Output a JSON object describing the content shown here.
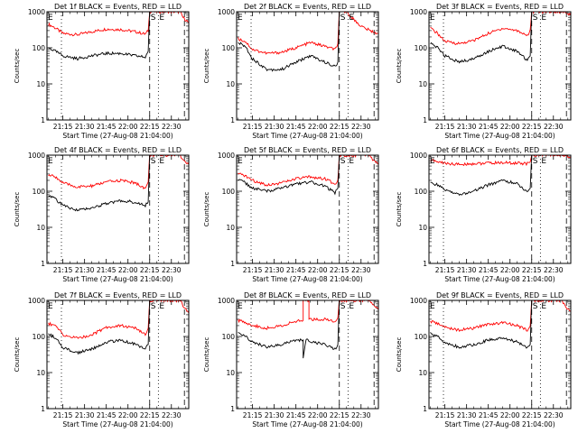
{
  "figure": {
    "colors": {
      "events": "#000000",
      "lld": "#ff0000",
      "axes": "#000000",
      "background": "#ffffff"
    }
  },
  "chart_data": [
    {
      "type": "line",
      "title": "Det 1f BLACK = Events, RED = LLD",
      "xlabel": "Start Time (27-Aug-08 21:04:00)",
      "ylabel": "Counts/sec",
      "y_scale": "log",
      "ylim": [
        1,
        1000
      ],
      "y_ticks": [
        "1",
        "10",
        "100",
        "1000"
      ],
      "x_tick_labels": [
        "21:15",
        "21:30",
        "21:45",
        "22:00",
        "22:15",
        "22:30"
      ],
      "xlim": [
        "21:04",
        "22:42"
      ],
      "grid": false,
      "markers": [
        {
          "time": "21:14",
          "style": "dotted"
        },
        {
          "time": "22:15",
          "style": "dashed",
          "label": "S"
        },
        {
          "time": "22:21",
          "style": "dotted",
          "label": "E"
        },
        {
          "time": "22:39",
          "style": "dashed"
        }
      ],
      "corner_label": "E",
      "series": [
        {
          "color": "red",
          "x": [
            "21:05",
            "21:10",
            "21:15",
            "21:25",
            "21:35",
            "21:45",
            "21:55",
            "22:05",
            "22:12",
            "22:14",
            "22:15",
            "22:36",
            "22:38",
            "22:42"
          ],
          "values": [
            450,
            350,
            250,
            230,
            280,
            330,
            320,
            280,
            240,
            300,
            1000,
            1000,
            700,
            500
          ]
        },
        {
          "color": "black",
          "x": [
            "21:05",
            "21:10",
            "21:15",
            "21:25",
            "21:35",
            "21:45",
            "21:55",
            "22:05",
            "22:12",
            "22:14",
            "22:15"
          ],
          "values": [
            100,
            80,
            60,
            50,
            60,
            70,
            70,
            60,
            55,
            80,
            1000
          ]
        }
      ]
    },
    {
      "type": "line",
      "title": "Det 2f BLACK = Events, RED = LLD",
      "xlabel": "Start Time (27-Aug-08 21:04:00)",
      "ylabel": "Counts/sec",
      "y_scale": "log",
      "ylim": [
        1,
        1000
      ],
      "y_ticks": [
        "1",
        "10",
        "100",
        "1000"
      ],
      "x_tick_labels": [
        "21:15",
        "21:30",
        "21:45",
        "22:00",
        "22:15",
        "22:30"
      ],
      "xlim": [
        "21:04",
        "22:42"
      ],
      "grid": false,
      "markers": [
        {
          "time": "21:14",
          "style": "dotted"
        },
        {
          "time": "22:15",
          "style": "dashed",
          "label": "S"
        },
        {
          "time": "22:21",
          "style": "dotted",
          "label": "E"
        },
        {
          "time": "22:39",
          "style": "dashed"
        }
      ],
      "corner_label": "E",
      "series": [
        {
          "color": "red",
          "x": [
            "21:05",
            "21:10",
            "21:15",
            "21:25",
            "21:35",
            "21:45",
            "21:55",
            "22:05",
            "22:12",
            "22:14",
            "22:15",
            "22:20",
            "22:25",
            "22:30",
            "22:36",
            "22:42"
          ],
          "values": [
            180,
            150,
            90,
            70,
            75,
            100,
            140,
            110,
            90,
            130,
            1000,
            1000,
            600,
            400,
            300,
            250
          ]
        },
        {
          "color": "black",
          "x": [
            "21:05",
            "21:10",
            "21:15",
            "21:25",
            "21:35",
            "21:45",
            "21:55",
            "22:05",
            "22:12",
            "22:14",
            "22:15"
          ],
          "values": [
            140,
            110,
            50,
            25,
            25,
            40,
            60,
            40,
            30,
            40,
            1000
          ]
        }
      ]
    },
    {
      "type": "line",
      "title": "Det 3f BLACK = Events, RED = LLD",
      "xlabel": "Start Time (27-Aug-08 21:04:00)",
      "ylabel": "Counts/sec",
      "y_scale": "log",
      "ylim": [
        1,
        1000
      ],
      "y_ticks": [
        "1",
        "10",
        "100",
        "1000"
      ],
      "x_tick_labels": [
        "21:15",
        "21:30",
        "21:45",
        "22:00",
        "22:15",
        "22:30"
      ],
      "xlim": [
        "21:04",
        "22:42"
      ],
      "grid": false,
      "markers": [
        {
          "time": "21:14",
          "style": "dotted"
        },
        {
          "time": "22:15",
          "style": "dashed",
          "label": "S"
        },
        {
          "time": "22:21",
          "style": "dotted",
          "label": "E"
        },
        {
          "time": "22:39",
          "style": "dashed"
        }
      ],
      "corner_label": "E",
      "series": [
        {
          "color": "red",
          "x": [
            "21:05",
            "21:10",
            "21:15",
            "21:25",
            "21:35",
            "21:45",
            "21:55",
            "22:05",
            "22:12",
            "22:14",
            "22:15",
            "22:38",
            "22:42"
          ],
          "values": [
            350,
            250,
            150,
            130,
            160,
            250,
            350,
            300,
            220,
            300,
            1000,
            1000,
            800
          ]
        },
        {
          "color": "black",
          "x": [
            "21:05",
            "21:10",
            "21:15",
            "21:25",
            "21:35",
            "21:45",
            "21:55",
            "22:05",
            "22:12",
            "22:14",
            "22:15"
          ],
          "values": [
            130,
            100,
            60,
            40,
            50,
            80,
            110,
            80,
            45,
            60,
            1000
          ]
        }
      ]
    },
    {
      "type": "line",
      "title": "Det 4f BLACK = Events, RED = LLD",
      "xlabel": "Start Time (27-Aug-08 21:04:00)",
      "ylabel": "Counts/sec",
      "y_scale": "log",
      "ylim": [
        1,
        1000
      ],
      "y_ticks": [
        "1",
        "10",
        "100",
        "1000"
      ],
      "x_tick_labels": [
        "21:15",
        "21:30",
        "21:45",
        "22:00",
        "22:15",
        "22:30"
      ],
      "xlim": [
        "21:04",
        "22:42"
      ],
      "grid": false,
      "markers": [
        {
          "time": "21:14",
          "style": "dotted"
        },
        {
          "time": "22:15",
          "style": "dashed",
          "label": "S"
        },
        {
          "time": "22:21",
          "style": "dotted",
          "label": "E"
        },
        {
          "time": "22:39",
          "style": "dashed"
        }
      ],
      "corner_label": "E",
      "series": [
        {
          "color": "red",
          "x": [
            "21:05",
            "21:10",
            "21:15",
            "21:25",
            "21:35",
            "21:45",
            "21:55",
            "22:05",
            "22:12",
            "22:14",
            "22:15",
            "22:36",
            "22:38",
            "22:42"
          ],
          "values": [
            280,
            250,
            170,
            130,
            140,
            180,
            200,
            170,
            120,
            180,
            1000,
            1000,
            750,
            550
          ]
        },
        {
          "color": "black",
          "x": [
            "21:05",
            "21:10",
            "21:15",
            "21:25",
            "21:35",
            "21:45",
            "21:55",
            "22:05",
            "22:12",
            "22:14",
            "22:15"
          ],
          "values": [
            80,
            60,
            40,
            30,
            35,
            45,
            55,
            50,
            40,
            50,
            1000
          ]
        }
      ]
    },
    {
      "type": "line",
      "title": "Det 5f BLACK = Events, RED = LLD",
      "xlabel": "Start Time (27-Aug-08 21:04:00)",
      "ylabel": "Counts/sec",
      "y_scale": "log",
      "ylim": [
        1,
        1000
      ],
      "y_ticks": [
        "1",
        "10",
        "100",
        "1000"
      ],
      "x_tick_labels": [
        "21:15",
        "21:30",
        "21:45",
        "22:00",
        "22:15",
        "22:30"
      ],
      "xlim": [
        "21:04",
        "22:42"
      ],
      "grid": false,
      "markers": [
        {
          "time": "21:14",
          "style": "dotted"
        },
        {
          "time": "22:15",
          "style": "dashed",
          "label": "S"
        },
        {
          "time": "22:21",
          "style": "dotted",
          "label": "E"
        },
        {
          "time": "22:39",
          "style": "dashed"
        }
      ],
      "corner_label": "E",
      "series": [
        {
          "color": "red",
          "x": [
            "21:05",
            "21:10",
            "21:15",
            "21:25",
            "21:35",
            "21:45",
            "21:55",
            "22:05",
            "22:12",
            "22:14",
            "22:15",
            "22:36",
            "22:38",
            "22:42"
          ],
          "values": [
            300,
            270,
            200,
            150,
            170,
            220,
            250,
            220,
            160,
            200,
            1000,
            1000,
            750,
            550
          ]
        },
        {
          "color": "black",
          "x": [
            "21:05",
            "21:10",
            "21:15",
            "21:25",
            "21:35",
            "21:45",
            "21:55",
            "22:05",
            "22:12",
            "22:14",
            "22:15"
          ],
          "values": [
            220,
            170,
            120,
            100,
            120,
            160,
            180,
            140,
            90,
            120,
            1000
          ]
        }
      ]
    },
    {
      "type": "line",
      "title": "Det 6f BLACK = Events, RED = LLD",
      "xlabel": "Start Time (27-Aug-08 21:04:00)",
      "ylabel": "Counts/sec",
      "y_scale": "log",
      "ylim": [
        1,
        1000
      ],
      "y_ticks": [
        "1",
        "10",
        "100",
        "1000"
      ],
      "x_tick_labels": [
        "21:15",
        "21:30",
        "21:45",
        "22:00",
        "22:15",
        "22:30"
      ],
      "xlim": [
        "21:04",
        "22:42"
      ],
      "grid": false,
      "markers": [
        {
          "time": "21:14",
          "style": "dotted"
        },
        {
          "time": "22:15",
          "style": "dashed",
          "label": "S"
        },
        {
          "time": "22:21",
          "style": "dotted",
          "label": "E"
        },
        {
          "time": "22:39",
          "style": "dashed"
        }
      ],
      "corner_label": "E",
      "series": [
        {
          "color": "red",
          "x": [
            "21:05",
            "21:10",
            "21:15",
            "21:25",
            "21:35",
            "21:45",
            "21:55",
            "22:05",
            "22:12",
            "22:14",
            "22:15",
            "22:38",
            "22:42"
          ],
          "values": [
            750,
            650,
            600,
            550,
            580,
            600,
            620,
            600,
            580,
            650,
            1000,
            1000,
            900
          ]
        },
        {
          "color": "black",
          "x": [
            "21:05",
            "21:10",
            "21:15",
            "21:25",
            "21:35",
            "21:45",
            "21:55",
            "22:05",
            "22:12",
            "22:14",
            "22:15"
          ],
          "values": [
            170,
            150,
            110,
            80,
            100,
            150,
            200,
            160,
            90,
            120,
            1000
          ]
        }
      ]
    },
    {
      "type": "line",
      "title": "Det 7f BLACK = Events, RED = LLD",
      "xlabel": "Start Time (27-Aug-08 21:04:00)",
      "ylabel": "Counts/sec",
      "y_scale": "log",
      "ylim": [
        1,
        1000
      ],
      "y_ticks": [
        "1",
        "10",
        "100",
        "1000"
      ],
      "x_tick_labels": [
        "21:15",
        "21:30",
        "21:45",
        "22:00",
        "22:15",
        "22:30"
      ],
      "xlim": [
        "21:04",
        "22:42"
      ],
      "grid": false,
      "markers": [
        {
          "time": "21:14",
          "style": "dotted"
        },
        {
          "time": "22:15",
          "style": "dashed",
          "label": "S"
        },
        {
          "time": "22:21",
          "style": "dotted",
          "label": "E"
        },
        {
          "time": "22:39",
          "style": "dashed"
        }
      ],
      "corner_label": "E",
      "series": [
        {
          "color": "red",
          "x": [
            "21:05",
            "21:10",
            "21:15",
            "21:25",
            "21:35",
            "21:45",
            "21:55",
            "22:05",
            "22:12",
            "22:14",
            "22:15",
            "22:36",
            "22:38",
            "22:42"
          ],
          "values": [
            230,
            200,
            110,
            90,
            110,
            180,
            200,
            170,
            110,
            170,
            1000,
            1000,
            700,
            450
          ]
        },
        {
          "color": "black",
          "x": [
            "21:05",
            "21:10",
            "21:15",
            "21:25",
            "21:35",
            "21:45",
            "21:55",
            "22:05",
            "22:12",
            "22:14",
            "22:15"
          ],
          "values": [
            120,
            90,
            50,
            35,
            45,
            70,
            80,
            60,
            45,
            60,
            1000
          ]
        }
      ]
    },
    {
      "type": "line",
      "title": "Det 8f BLACK = Events, RED = LLD",
      "xlabel": "Start Time (27-Aug-08 21:04:00)",
      "ylabel": "Counts/sec",
      "y_scale": "log",
      "ylim": [
        1,
        1000
      ],
      "y_ticks": [
        "1",
        "10",
        "100",
        "1000"
      ],
      "x_tick_labels": [
        "21:15",
        "21:30",
        "21:45",
        "22:00",
        "22:15",
        "22:30"
      ],
      "xlim": [
        "21:04",
        "22:42"
      ],
      "grid": false,
      "markers": [
        {
          "time": "21:14",
          "style": "dotted"
        },
        {
          "time": "22:15",
          "style": "dashed",
          "label": "S"
        },
        {
          "time": "22:21",
          "style": "dotted",
          "label": "E"
        },
        {
          "time": "22:39",
          "style": "dashed"
        }
      ],
      "corner_label": "E",
      "series": [
        {
          "color": "red",
          "x": [
            "21:05",
            "21:10",
            "21:15",
            "21:25",
            "21:35",
            "21:45",
            "21:50",
            "21:50",
            "21:54",
            "21:54",
            "22:05",
            "22:12",
            "22:14",
            "22:15",
            "22:36",
            "22:38",
            "22:42"
          ],
          "values": [
            280,
            250,
            200,
            170,
            200,
            260,
            280,
            1000,
            1000,
            300,
            300,
            250,
            330,
            1000,
            1000,
            750,
            550
          ]
        },
        {
          "color": "black",
          "x": [
            "21:05",
            "21:10",
            "21:15",
            "21:25",
            "21:35",
            "21:45",
            "21:50",
            "21:50",
            "21:52",
            "21:56",
            "22:05",
            "22:12",
            "22:14",
            "22:15"
          ],
          "values": [
            120,
            100,
            70,
            50,
            60,
            80,
            80,
            25,
            80,
            70,
            60,
            45,
            60,
            1000
          ]
        }
      ]
    },
    {
      "type": "line",
      "title": "Det 9f BLACK = Events, RED = LLD",
      "xlabel": "Start Time (27-Aug-08 21:04:00)",
      "ylabel": "Counts/sec",
      "y_scale": "log",
      "ylim": [
        1,
        1000
      ],
      "y_ticks": [
        "1",
        "10",
        "100",
        "1000"
      ],
      "x_tick_labels": [
        "21:15",
        "21:30",
        "21:45",
        "22:00",
        "22:15",
        "22:30"
      ],
      "xlim": [
        "21:04",
        "22:42"
      ],
      "grid": false,
      "markers": [
        {
          "time": "21:14",
          "style": "dotted"
        },
        {
          "time": "22:15",
          "style": "dashed",
          "label": "S"
        },
        {
          "time": "22:21",
          "style": "dotted",
          "label": "E"
        },
        {
          "time": "22:39",
          "style": "dashed"
        }
      ],
      "corner_label": "E",
      "series": [
        {
          "color": "red",
          "x": [
            "21:05",
            "21:10",
            "21:15",
            "21:25",
            "21:35",
            "21:45",
            "21:55",
            "22:05",
            "22:12",
            "22:14",
            "22:15",
            "22:36",
            "22:38",
            "22:42"
          ],
          "values": [
            260,
            230,
            180,
            150,
            170,
            220,
            240,
            200,
            150,
            200,
            1000,
            1000,
            700,
            500
          ]
        },
        {
          "color": "black",
          "x": [
            "21:05",
            "21:10",
            "21:15",
            "21:25",
            "21:35",
            "21:45",
            "21:55",
            "22:05",
            "22:12",
            "22:14",
            "22:15"
          ],
          "values": [
            120,
            100,
            70,
            50,
            60,
            80,
            90,
            70,
            50,
            60,
            1000
          ]
        }
      ]
    }
  ]
}
